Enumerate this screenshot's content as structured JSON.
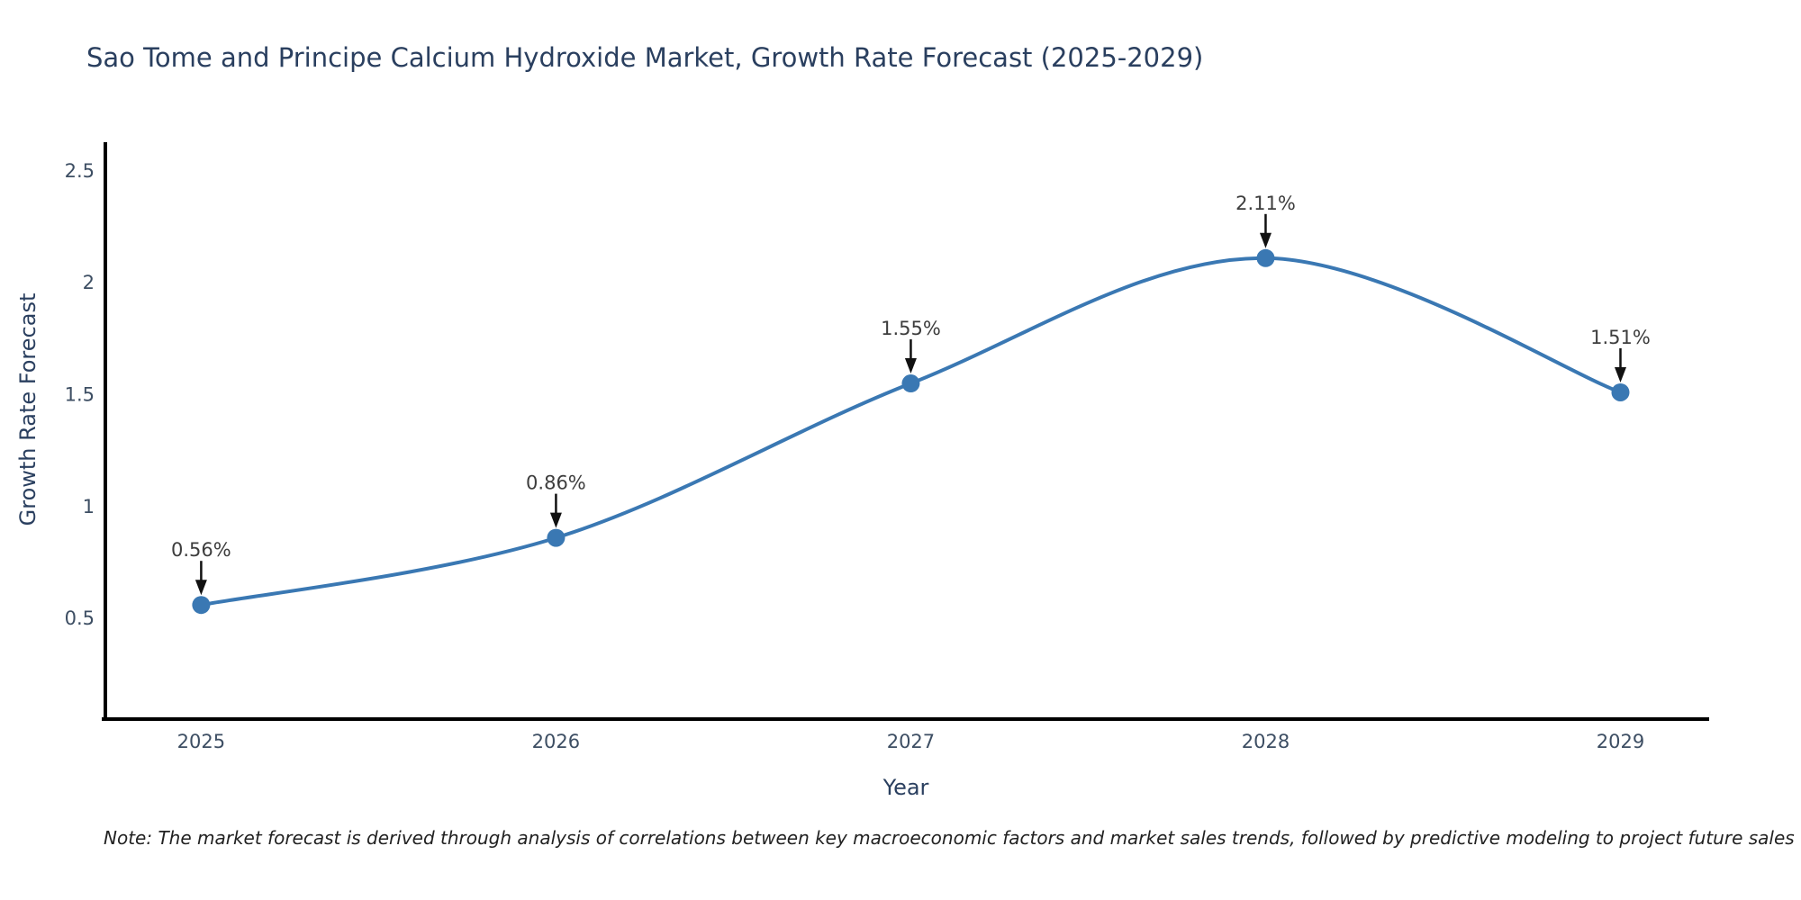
{
  "note": {
    "text": "Note: The market forecast is derived through analysis of correlations between key macroeconomic factors and market sales trends, followed by predictive modeling to project future sales"
  },
  "colors": {
    "line": "#3a78b3",
    "marker": "#3a78b3",
    "title_text": "#2a3f5f",
    "tick_text": "#3d4e63",
    "annotation_text": "#3d3d3d",
    "arrow": "#111111",
    "axis_line": "#000000",
    "note_text": "#222222",
    "background": "#ffffff"
  },
  "chart_data": {
    "type": "line",
    "title": "Sao Tome and Principe Calcium Hydroxide Market, Growth Rate Forecast (2025-2029)",
    "xlabel": "Year",
    "ylabel": "Growth Rate Forecast",
    "x": [
      2025,
      2026,
      2027,
      2028,
      2029
    ],
    "xticks": [
      "2025",
      "2026",
      "2027",
      "2028",
      "2029"
    ],
    "series": [
      {
        "name": "Growth Rate Forecast",
        "values": [
          0.56,
          0.86,
          1.55,
          2.11,
          1.51
        ]
      }
    ],
    "point_labels": [
      "0.56%",
      "0.86%",
      "1.55%",
      "2.11%",
      "1.51%"
    ],
    "yticks": [
      0.5,
      1.0,
      1.5,
      2.0,
      2.5
    ],
    "ytick_labels": [
      "0.5",
      "1",
      "1.5",
      "2",
      "2.5"
    ],
    "xlim": [
      2024.73,
      2029.25
    ],
    "ylim": [
      0.05,
      2.62
    ],
    "grid": false,
    "legend": false,
    "line_shape": "spline",
    "marker_size": 20,
    "annotation_style": "down-arrow-to-point"
  }
}
